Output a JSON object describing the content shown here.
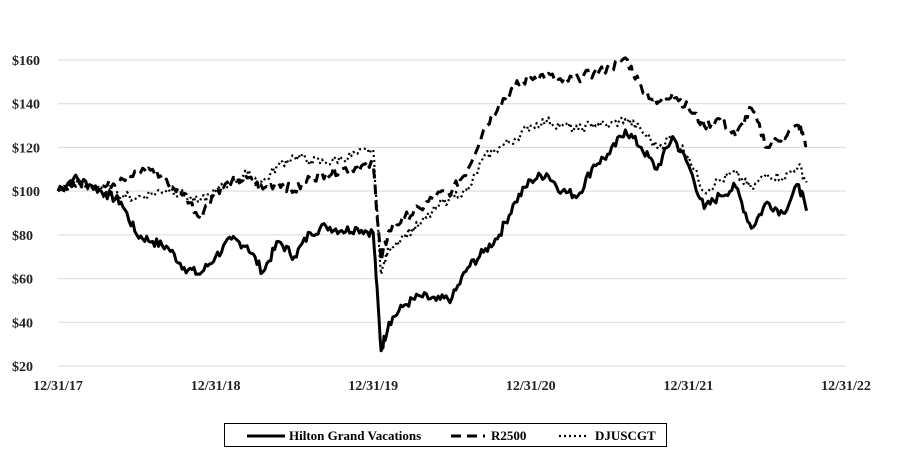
{
  "chart_data": {
    "type": "line",
    "title": "",
    "xlabel": "",
    "ylabel": "",
    "x_ticks": [
      "12/31/17",
      "12/31/18",
      "12/31/19",
      "12/31/20",
      "12/31/21",
      "12/31/22"
    ],
    "y_ticks": [
      "$20",
      "$40",
      "$60",
      "$80",
      "$100",
      "$120",
      "$140",
      "$160"
    ],
    "ylim": [
      20,
      160
    ],
    "xlim": [
      0,
      5
    ],
    "grid": "horizontal",
    "legend_placement": "bottom",
    "series": [
      {
        "name": "Hilton Grand Vacations",
        "style": "solid",
        "color": "#000000",
        "x": [
          0,
          0.1,
          0.2,
          0.3,
          0.4,
          0.5,
          0.6,
          0.7,
          0.8,
          0.9,
          1.0,
          1.1,
          1.2,
          1.3,
          1.4,
          1.5,
          1.6,
          1.7,
          1.8,
          1.9,
          2.0,
          2.05,
          2.1,
          2.2,
          2.3,
          2.4,
          2.5,
          2.6,
          2.7,
          2.8,
          2.9,
          3.0,
          3.1,
          3.2,
          3.3,
          3.4,
          3.5,
          3.6,
          3.7,
          3.8,
          3.9,
          4.0,
          4.1,
          4.2,
          4.3,
          4.4,
          4.5,
          4.6,
          4.7,
          4.75
        ],
        "values": [
          100,
          106,
          103,
          99,
          95,
          80,
          77,
          74,
          65,
          62,
          70,
          78,
          75,
          63,
          77,
          70,
          81,
          84,
          82,
          83,
          81,
          27,
          40,
          48,
          52,
          50,
          51,
          65,
          72,
          80,
          95,
          105,
          108,
          100,
          98,
          112,
          117,
          128,
          120,
          110,
          125,
          112,
          92,
          98,
          102,
          83,
          95,
          90,
          103,
          91
        ]
      },
      {
        "name": "R2500",
        "style": "dashed",
        "color": "#000000",
        "x": [
          0,
          0.1,
          0.2,
          0.3,
          0.4,
          0.5,
          0.6,
          0.7,
          0.8,
          0.9,
          1.0,
          1.1,
          1.2,
          1.3,
          1.4,
          1.5,
          1.6,
          1.7,
          1.8,
          1.9,
          2.0,
          2.05,
          2.1,
          2.2,
          2.3,
          2.4,
          2.5,
          2.6,
          2.7,
          2.8,
          2.9,
          3.0,
          3.1,
          3.2,
          3.3,
          3.4,
          3.5,
          3.6,
          3.7,
          3.8,
          3.9,
          4.0,
          4.1,
          4.2,
          4.3,
          4.4,
          4.5,
          4.6,
          4.7,
          4.75
        ],
        "values": [
          100,
          103,
          104,
          102,
          106,
          108,
          110,
          103,
          99,
          88,
          100,
          104,
          106,
          101,
          104,
          100,
          106,
          108,
          110,
          111,
          112,
          68,
          82,
          88,
          92,
          98,
          100,
          110,
          128,
          140,
          148,
          152,
          153,
          150,
          152,
          154,
          156,
          161,
          148,
          140,
          145,
          138,
          130,
          133,
          125,
          138,
          120,
          125,
          130,
          121
        ]
      },
      {
        "name": "DJUSCGT",
        "style": "dotted",
        "color": "#000000",
        "x": [
          0,
          0.1,
          0.2,
          0.3,
          0.4,
          0.5,
          0.6,
          0.7,
          0.8,
          0.9,
          1.0,
          1.1,
          1.2,
          1.3,
          1.4,
          1.5,
          1.6,
          1.7,
          1.8,
          1.9,
          2.0,
          2.05,
          2.1,
          2.2,
          2.3,
          2.4,
          2.5,
          2.6,
          2.7,
          2.8,
          2.9,
          3.0,
          3.1,
          3.2,
          3.3,
          3.4,
          3.5,
          3.6,
          3.7,
          3.8,
          3.9,
          4.0,
          4.1,
          4.2,
          4.3,
          4.4,
          4.5,
          4.6,
          4.7,
          4.75
        ],
        "values": [
          100,
          104,
          102,
          99,
          98,
          97,
          99,
          101,
          98,
          95,
          100,
          104,
          108,
          104,
          112,
          116,
          114,
          113,
          115,
          117,
          119,
          62,
          74,
          80,
          85,
          92,
          98,
          100,
          115,
          120,
          124,
          130,
          132,
          130,
          128,
          131,
          130,
          133,
          128,
          120,
          125,
          116,
          100,
          105,
          108,
          101,
          108,
          106,
          112,
          104
        ]
      }
    ]
  }
}
